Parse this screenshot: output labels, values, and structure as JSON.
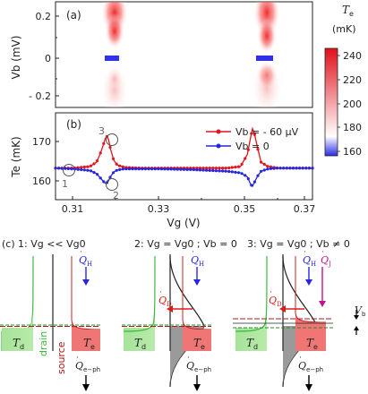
{
  "panel_a": {
    "label": "(a)",
    "ylabel": "Vb (mV)",
    "yticks": [
      "0.2",
      "0",
      "- 0.2"
    ]
  },
  "colorbar": {
    "title_sym": "T",
    "title_sub": "e",
    "unit": "(mK)",
    "ticks": [
      "240",
      "220",
      "200",
      "180",
      "160"
    ],
    "colors": {
      "low": "#2a2ae6",
      "mid": "#ffffff",
      "high": "#e0101a"
    }
  },
  "panel_b": {
    "label": "(b)",
    "ylabel": "Te (mK)",
    "yticks": [
      "170",
      "160"
    ],
    "xticks": [
      "0.31",
      "0.33",
      "0.35",
      "0.37"
    ],
    "xlabel": "Vg (V)",
    "legend": [
      "Vb = - 60 μV",
      "Vb = 0"
    ],
    "markers": [
      "1",
      "2",
      "3"
    ]
  },
  "chart_data": {
    "type": "line",
    "title": "",
    "xlabel": "Vg (V)",
    "ylabel": "Te (mK)",
    "xlim": [
      0.3,
      0.375
    ],
    "ylim": [
      155,
      177
    ],
    "series": [
      {
        "name": "Vb = - 60 μV",
        "color": "#e3141c",
        "x": [
          0.3,
          0.305,
          0.31,
          0.312,
          0.313,
          0.314,
          0.3145,
          0.315,
          0.3155,
          0.316,
          0.317,
          0.318,
          0.32,
          0.325,
          0.33,
          0.34,
          0.35,
          0.354,
          0.356,
          0.357,
          0.3575,
          0.358,
          0.359,
          0.36,
          0.362,
          0.365,
          0.37,
          0.375
        ],
        "y": [
          163,
          163,
          163.4,
          164.5,
          166.5,
          169,
          170.5,
          171,
          170.2,
          168,
          165,
          163.8,
          163.2,
          163,
          163,
          163,
          163,
          163.4,
          166.5,
          171,
          173,
          172,
          168,
          164.5,
          163.4,
          163,
          163,
          163
        ]
      },
      {
        "name": "Vb = 0",
        "color": "#2626e0",
        "x": [
          0.3,
          0.305,
          0.31,
          0.312,
          0.313,
          0.314,
          0.3145,
          0.315,
          0.3155,
          0.316,
          0.317,
          0.318,
          0.32,
          0.325,
          0.33,
          0.34,
          0.35,
          0.354,
          0.356,
          0.357,
          0.3575,
          0.358,
          0.359,
          0.36,
          0.362,
          0.365,
          0.37,
          0.375
        ],
        "y": [
          163,
          162.8,
          162.4,
          161.6,
          160.6,
          159.6,
          159.2,
          159.3,
          159.8,
          160.8,
          162,
          162.5,
          162.8,
          162.8,
          162.8,
          162.6,
          162.2,
          161.8,
          160.8,
          158.8,
          158.4,
          159.3,
          161,
          162.2,
          162.8,
          163,
          163,
          163
        ]
      }
    ]
  },
  "panel_c": {
    "label": "(c)",
    "titles": [
      "1: Vg << Vg0",
      "2: Vg = Vg0 ; Vb = 0",
      "3: Vg = Vg0 ; Vb ≠ 0"
    ],
    "labels": {
      "Td": "T",
      "Td_sub": "d",
      "Te": "T",
      "Te_sub": "e",
      "QH": "Q",
      "QH_sub": "H",
      "QD": "Q",
      "QD_sub": "D",
      "QJ": "Q",
      "QJ_sub": "J",
      "Qeph": "Q",
      "Qeph_sub": "e−ph",
      "Vb": "V",
      "Vb_sub": "b",
      "drain": "drain",
      "source": "source"
    }
  }
}
